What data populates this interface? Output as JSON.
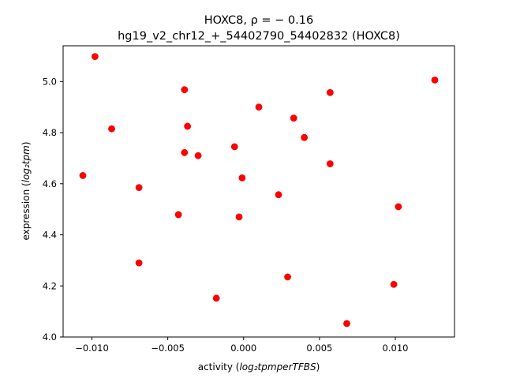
{
  "chart_data": {
    "type": "scatter",
    "title_line1": "HOXC8, ρ = − 0.16",
    "title_line2": "hg19_v2_chr12_+_54402790_54402832 (HOXC8)",
    "xlabel_prefix": "activity (",
    "xlabel_math": "log₂tpmperTFBS",
    "xlabel_suffix": ")",
    "ylabel_prefix": "expression (",
    "ylabel_math": "log₂tpm",
    "ylabel_suffix": ")",
    "xlim": [
      -0.0119,
      0.0139
    ],
    "ylim": [
      4.0,
      5.14
    ],
    "xticks": [
      -0.01,
      -0.005,
      0.0,
      0.005,
      0.01
    ],
    "xtick_labels": [
      "−0.010",
      "−0.005",
      "0.000",
      "0.005",
      "0.010"
    ],
    "yticks": [
      4.0,
      4.2,
      4.4,
      4.6,
      4.8,
      5.0
    ],
    "ytick_labels": [
      "4.0",
      "4.2",
      "4.4",
      "4.6",
      "4.8",
      "5.0"
    ],
    "marker_color": "#ff0000",
    "points": [
      {
        "x": -0.0098,
        "y": 5.098
      },
      {
        "x": -0.0087,
        "y": 4.815
      },
      {
        "x": -0.0106,
        "y": 4.632
      },
      {
        "x": -0.0069,
        "y": 4.585
      },
      {
        "x": -0.0069,
        "y": 4.29
      },
      {
        "x": -0.0043,
        "y": 4.479
      },
      {
        "x": -0.0039,
        "y": 4.968
      },
      {
        "x": -0.0037,
        "y": 4.825
      },
      {
        "x": -0.0039,
        "y": 4.722
      },
      {
        "x": -0.003,
        "y": 4.71
      },
      {
        "x": -0.0018,
        "y": 4.152
      },
      {
        "x": -0.0006,
        "y": 4.745
      },
      {
        "x": -0.0003,
        "y": 4.47
      },
      {
        "x": -0.0001,
        "y": 4.623
      },
      {
        "x": 0.001,
        "y": 4.9
      },
      {
        "x": 0.0023,
        "y": 4.557
      },
      {
        "x": 0.0029,
        "y": 4.235
      },
      {
        "x": 0.0033,
        "y": 4.857
      },
      {
        "x": 0.004,
        "y": 4.781
      },
      {
        "x": 0.0057,
        "y": 4.957
      },
      {
        "x": 0.0057,
        "y": 4.678
      },
      {
        "x": 0.0068,
        "y": 4.053
      },
      {
        "x": 0.0099,
        "y": 4.206
      },
      {
        "x": 0.0102,
        "y": 4.51
      },
      {
        "x": 0.0126,
        "y": 5.006
      }
    ]
  }
}
